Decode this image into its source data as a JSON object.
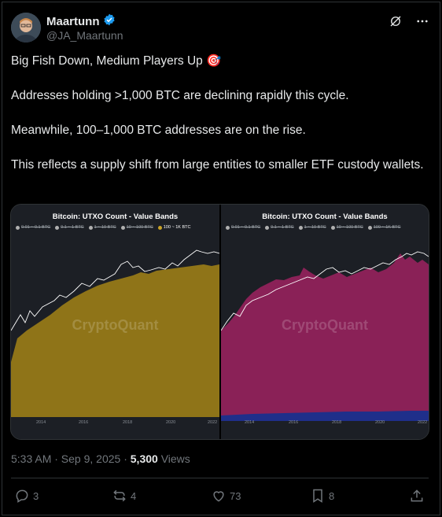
{
  "author": {
    "name": "Maartunn",
    "handle": "@JA_Maartunn",
    "verified": true
  },
  "header_icons": [
    "grok-icon",
    "more-icon"
  ],
  "post": {
    "paragraphs": [
      "Big Fish Down, Medium Players Up 🎯",
      "Addresses holding >1,000 BTC are declining rapidly this cycle.",
      "Meanwhile, 100–1,000 BTC addresses are on the rise.",
      "This reflects a supply shift from large entities to smaller ETF custody wallets."
    ]
  },
  "media": {
    "left": {
      "title": "Bitcoin: UTXO Count - Value Bands",
      "legend": [
        "0.01 ~ 0.1 BTC",
        "0.1 ~ 1 BTC",
        "1 ~ 10 BTC",
        "10 ~ 100 BTC",
        "100 ~ 1K BTC"
      ],
      "active_legend": "100 ~ 1K BTC",
      "watermark": "CryptoQuant",
      "xticks": [
        "2014",
        "2016",
        "2018",
        "2020",
        "2022"
      ],
      "fill_color": "#8f7418"
    },
    "right": {
      "title": "Bitcoin: UTXO Count - Value Bands",
      "legend": [
        "0.01 ~ 0.1 BTC",
        "0.1 ~ 1 BTC",
        "1 ~ 10 BTC",
        "10 ~ 100 BTC",
        "100 ~ 1K BTC"
      ],
      "watermark": "CryptoQuant",
      "xticks": [
        "2014",
        "2016",
        "2018",
        "2020",
        "2022"
      ],
      "fill_color": "#8a2157",
      "base_color": "#1f2f8a"
    }
  },
  "meta": {
    "time": "5:33 AM · Sep 9, 2025 · ",
    "views_count": "5,300",
    "views_label": " Views"
  },
  "actions": {
    "replies": "3",
    "reposts": "4",
    "likes": "73",
    "bookmarks": "8"
  }
}
